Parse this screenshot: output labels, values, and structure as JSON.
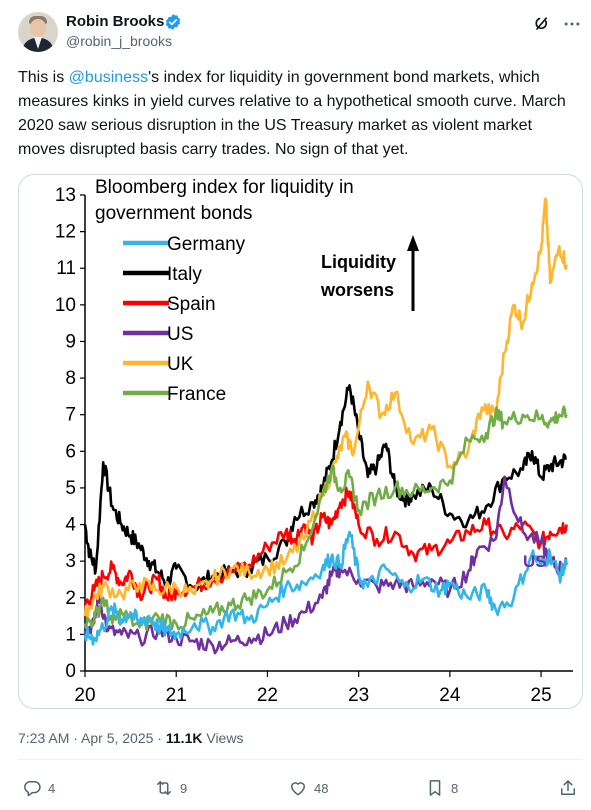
{
  "author": {
    "name": "Robin Brooks",
    "handle": "@robin_j_brooks"
  },
  "icons": {
    "verified": "verified-badge-icon",
    "grok": "grok-icon",
    "more": "more-icon",
    "reply": "reply-icon",
    "retweet": "retweet-icon",
    "like": "like-icon",
    "bookmark": "bookmark-icon",
    "share": "share-icon"
  },
  "tweet": {
    "text_before": "This is ",
    "mention": "@business",
    "text_after": "'s index for liquidity in government bond markets, which measures kinks in yield curves relative to a hypothetical smooth curve. March 2020 saw serious disruption in the US Treasury market as violent market moves disrupted basis carry trades. No sign of that yet."
  },
  "meta": {
    "time": "7:23 AM · Apr 5, 2025",
    "separator": " · ",
    "views_count": "11.1K",
    "views_label": " Views"
  },
  "actions": {
    "replies": "4",
    "reposts": "9",
    "likes": "48",
    "bookmarks": "8"
  },
  "colors": {
    "accent": "#1d9bf0",
    "muted": "#536471",
    "Germany": "#33b5ea",
    "Italy": "#000000",
    "Spain": "#ff0000",
    "US": "#7030a0",
    "UK": "#ffb52e",
    "France": "#70ad47"
  },
  "chart_data": {
    "type": "line",
    "title_line1": "Bloomberg index for liquidity in",
    "title_line2": "government bonds",
    "xlim": [
      20,
      25.35
    ],
    "ylim": [
      0,
      13
    ],
    "x_ticks": [
      "20",
      "21",
      "22",
      "23",
      "24",
      "25"
    ],
    "y_ticks": [
      "0",
      "1",
      "2",
      "3",
      "4",
      "5",
      "6",
      "7",
      "8",
      "9",
      "10",
      "11",
      "12",
      "13"
    ],
    "annotation_line1": "Liquidity",
    "annotation_line2": "worsens",
    "end_label": "US",
    "legend_position": "top-left",
    "grid": false,
    "series": [
      {
        "name": "Germany",
        "color": "#33b5ea",
        "x": [
          20.0,
          20.1,
          20.2,
          20.3,
          20.4,
          20.5,
          20.6,
          20.7,
          20.8,
          20.9,
          21.0,
          21.2,
          21.4,
          21.6,
          21.8,
          22.0,
          22.2,
          22.4,
          22.6,
          22.7,
          22.8,
          22.9,
          23.0,
          23.1,
          23.3,
          23.5,
          23.7,
          23.9,
          24.0,
          24.2,
          24.4,
          24.5,
          24.7,
          24.9,
          25.0,
          25.1,
          25.2,
          25.28
        ],
        "y": [
          1.0,
          0.9,
          1.2,
          1.7,
          1.4,
          1.6,
          1.3,
          1.5,
          1.2,
          1.1,
          1.0,
          1.3,
          1.2,
          1.6,
          1.4,
          1.8,
          2.3,
          2.4,
          2.8,
          3.1,
          2.9,
          3.8,
          2.6,
          2.3,
          2.8,
          2.3,
          2.5,
          2.2,
          2.4,
          2.0,
          2.2,
          1.7,
          2.0,
          3.2,
          2.9,
          3.2,
          2.6,
          2.9
        ]
      },
      {
        "name": "Italy",
        "color": "#000000",
        "x": [
          20.0,
          20.05,
          20.12,
          20.2,
          20.3,
          20.4,
          20.5,
          20.6,
          20.7,
          20.8,
          20.9,
          21.0,
          21.2,
          21.4,
          21.6,
          21.8,
          22.0,
          22.2,
          22.3,
          22.5,
          22.6,
          22.7,
          22.8,
          22.9,
          23.0,
          23.1,
          23.2,
          23.3,
          23.4,
          23.5,
          23.6,
          23.8,
          24.0,
          24.2,
          24.4,
          24.6,
          24.8,
          24.9,
          25.0,
          25.1,
          25.2,
          25.28
        ],
        "y": [
          4.0,
          3.2,
          2.8,
          5.7,
          4.5,
          4.0,
          3.7,
          3.4,
          3.0,
          2.7,
          2.4,
          2.8,
          2.3,
          2.6,
          2.7,
          2.8,
          3.1,
          3.5,
          4.2,
          4.6,
          5.0,
          5.7,
          6.8,
          7.8,
          6.5,
          5.3,
          5.6,
          6.2,
          5.0,
          4.7,
          4.8,
          5.0,
          4.3,
          4.1,
          4.5,
          5.3,
          5.5,
          6.0,
          5.3,
          5.6,
          5.7,
          5.8
        ]
      },
      {
        "name": "Spain",
        "color": "#ff0000",
        "x": [
          20.0,
          20.1,
          20.2,
          20.3,
          20.4,
          20.5,
          20.6,
          20.7,
          20.8,
          20.9,
          21.0,
          21.2,
          21.4,
          21.6,
          21.8,
          22.0,
          22.2,
          22.3,
          22.4,
          22.5,
          22.6,
          22.7,
          22.8,
          22.9,
          23.0,
          23.2,
          23.4,
          23.6,
          23.8,
          24.0,
          24.2,
          24.4,
          24.6,
          24.8,
          25.0,
          25.1,
          25.2,
          25.28
        ],
        "y": [
          1.8,
          2.2,
          2.6,
          2.8,
          2.4,
          2.7,
          2.1,
          2.3,
          2.5,
          2.0,
          2.2,
          2.3,
          2.5,
          2.7,
          2.9,
          3.4,
          3.8,
          3.6,
          4.0,
          3.6,
          4.2,
          4.0,
          4.6,
          4.9,
          4.0,
          3.6,
          3.8,
          3.2,
          3.3,
          3.5,
          3.8,
          4.0,
          3.7,
          4.0,
          3.5,
          3.8,
          3.9,
          4.0
        ]
      },
      {
        "name": "US",
        "color": "#7030a0",
        "x": [
          20.0,
          20.1,
          20.15,
          20.25,
          20.4,
          20.6,
          20.8,
          21.0,
          21.2,
          21.4,
          21.6,
          21.8,
          22.0,
          22.2,
          22.4,
          22.6,
          22.7,
          22.8,
          23.0,
          23.2,
          23.4,
          23.6,
          23.8,
          24.0,
          24.2,
          24.3,
          24.5,
          24.6,
          24.8,
          25.0,
          25.1,
          25.2,
          25.28
        ],
        "y": [
          1.1,
          1.3,
          2.1,
          1.1,
          1.0,
          0.9,
          1.1,
          0.9,
          0.8,
          0.7,
          0.8,
          0.9,
          1.0,
          1.3,
          1.6,
          2.0,
          2.6,
          2.8,
          2.5,
          2.3,
          2.4,
          2.3,
          2.5,
          2.2,
          2.7,
          3.3,
          3.6,
          5.3,
          3.8,
          3.5,
          3.0,
          2.8,
          2.9
        ]
      },
      {
        "name": "UK",
        "color": "#ffb52e",
        "x": [
          20.0,
          20.1,
          20.2,
          20.4,
          20.6,
          20.8,
          21.0,
          21.2,
          21.4,
          21.6,
          21.8,
          22.0,
          22.2,
          22.4,
          22.6,
          22.75,
          22.85,
          22.95,
          23.1,
          23.25,
          23.4,
          23.6,
          23.8,
          24.0,
          24.2,
          24.35,
          24.5,
          24.6,
          24.7,
          24.8,
          24.9,
          25.0,
          25.05,
          25.1,
          25.2,
          25.28
        ],
        "y": [
          1.5,
          2.0,
          2.3,
          2.1,
          2.4,
          2.2,
          2.3,
          2.1,
          2.5,
          2.8,
          2.7,
          2.8,
          3.0,
          3.6,
          4.8,
          5.7,
          6.4,
          6.0,
          7.9,
          7.0,
          7.6,
          6.2,
          6.6,
          5.6,
          6.0,
          7.2,
          7.0,
          8.7,
          10.0,
          9.5,
          10.6,
          11.5,
          12.9,
          10.6,
          11.6,
          11.1
        ]
      },
      {
        "name": "France",
        "color": "#70ad47",
        "x": [
          20.0,
          20.1,
          20.2,
          20.3,
          20.4,
          20.6,
          20.8,
          21.0,
          21.2,
          21.4,
          21.6,
          21.8,
          22.0,
          22.2,
          22.4,
          22.6,
          22.7,
          22.8,
          22.9,
          23.0,
          23.2,
          23.4,
          23.6,
          23.8,
          24.0,
          24.2,
          24.4,
          24.5,
          24.6,
          24.8,
          25.0,
          25.1,
          25.2,
          25.28
        ],
        "y": [
          1.3,
          1.4,
          2.0,
          1.3,
          1.6,
          1.2,
          1.5,
          1.3,
          1.4,
          1.6,
          1.8,
          2.0,
          2.2,
          2.7,
          3.3,
          4.8,
          5.5,
          5.0,
          5.3,
          4.4,
          4.8,
          5.0,
          4.9,
          5.0,
          5.2,
          6.3,
          6.5,
          7.0,
          6.8,
          7.0,
          6.9,
          6.8,
          7.0,
          7.0
        ]
      }
    ]
  }
}
